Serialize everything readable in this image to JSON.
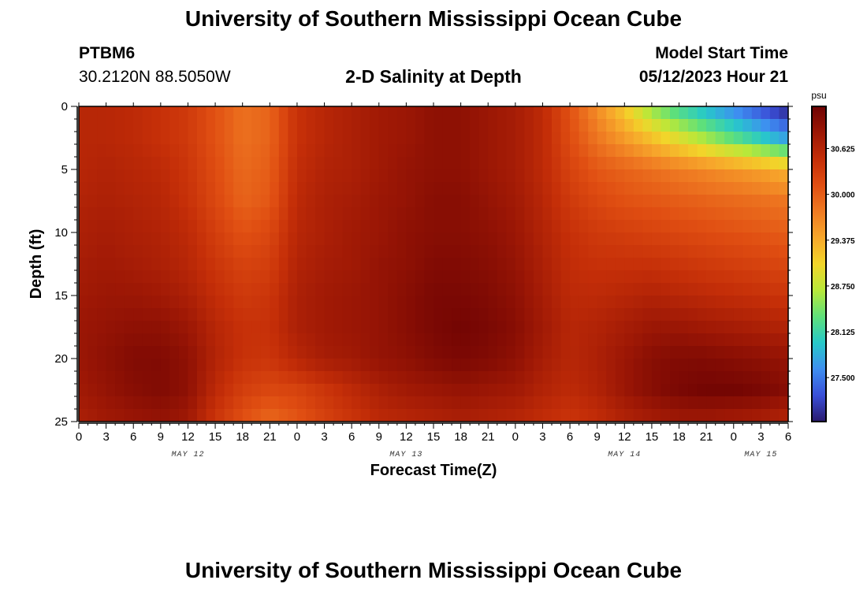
{
  "header": {
    "title": "University of Southern Mississippi Ocean Cube",
    "station_id": "PTBM6",
    "station_coords": "30.2120N  88.5050W",
    "plot_title": "2-D Salinity at Depth",
    "model_start_label": "Model Start Time",
    "model_start_value": "05/12/2023 Hour 21"
  },
  "footer": {
    "title": "University of Southern Mississippi Ocean Cube"
  },
  "chart_data": {
    "type": "heatmap",
    "title": "2-D Salinity at Depth",
    "xlabel": "Forecast Time(Z)",
    "ylabel": "Depth (ft)",
    "x_tick_labels": [
      "0",
      "3",
      "6",
      "9",
      "12",
      "15",
      "18",
      "21",
      "0",
      "3",
      "6",
      "9",
      "12",
      "15",
      "18",
      "21",
      "0",
      "3",
      "6",
      "9",
      "12",
      "15",
      "18",
      "21",
      "0",
      "3",
      "6"
    ],
    "x_hours": [
      0,
      3,
      6,
      9,
      12,
      15,
      18,
      21,
      24,
      27,
      30,
      33,
      36,
      39,
      42,
      45,
      48,
      51,
      54,
      57,
      60,
      63,
      66,
      69,
      72,
      75,
      78
    ],
    "xlim": [
      0,
      78
    ],
    "date_labels": [
      {
        "text": "MAY 12",
        "hour": 12
      },
      {
        "text": "MAY 13",
        "hour": 36
      },
      {
        "text": "MAY 14",
        "hour": 60
      },
      {
        "text": "MAY 15",
        "hour": 75
      }
    ],
    "y_ticks": [
      0,
      5,
      10,
      15,
      20,
      25
    ],
    "ylim": [
      0,
      25
    ],
    "y_inverted": true,
    "colorbar": {
      "unit": "psu",
      "min": 26.9,
      "max": 31.2,
      "ticks": [
        "30.625",
        "30.000",
        "29.375",
        "28.750",
        "28.125",
        "27.500"
      ],
      "tick_values": [
        30.625,
        30.0,
        29.375,
        28.75,
        28.125,
        27.5
      ],
      "colormap": [
        "#2a1a6e",
        "#3a4fd8",
        "#3e8ff0",
        "#27c9c9",
        "#5fe07a",
        "#b8e83a",
        "#f2d52a",
        "#f7a72b",
        "#ef7a22",
        "#e04e12",
        "#c42e08",
        "#9c1705",
        "#6e0303"
      ]
    },
    "depths_ft": [
      0,
      2.5,
      5,
      7.5,
      10,
      12.5,
      15,
      17.5,
      20,
      22.5,
      25
    ],
    "hours": [
      0,
      3,
      6,
      9,
      12,
      15,
      18,
      21,
      24,
      27,
      30,
      33,
      36,
      39,
      42,
      45,
      48,
      51,
      54,
      57,
      60,
      63,
      66,
      69,
      72,
      75,
      78
    ],
    "salinity_psu": [
      [
        30.6,
        30.6,
        30.55,
        30.45,
        30.35,
        30.1,
        29.85,
        29.95,
        30.45,
        30.6,
        30.7,
        30.8,
        30.85,
        30.95,
        30.95,
        30.85,
        30.75,
        30.55,
        30.1,
        29.6,
        29.1,
        28.5,
        28.1,
        27.8,
        27.5,
        27.2,
        26.9
      ],
      [
        30.6,
        30.6,
        30.55,
        30.45,
        30.35,
        30.1,
        29.85,
        29.95,
        30.45,
        30.6,
        30.7,
        30.8,
        30.85,
        30.95,
        30.95,
        30.85,
        30.75,
        30.55,
        30.15,
        29.8,
        29.5,
        29.2,
        28.9,
        28.6,
        28.3,
        28.0,
        27.7
      ],
      [
        30.6,
        30.65,
        30.6,
        30.55,
        30.4,
        30.15,
        29.9,
        30.0,
        30.5,
        30.65,
        30.7,
        30.8,
        30.9,
        30.95,
        30.95,
        30.85,
        30.75,
        30.55,
        30.25,
        30.05,
        29.95,
        29.85,
        29.75,
        29.65,
        29.55,
        29.45,
        29.3
      ],
      [
        30.65,
        30.7,
        30.65,
        30.6,
        30.45,
        30.2,
        29.95,
        30.05,
        30.55,
        30.7,
        30.75,
        30.85,
        30.9,
        31.0,
        31.0,
        30.9,
        30.8,
        30.6,
        30.35,
        30.2,
        30.1,
        30.05,
        30.0,
        29.95,
        29.9,
        29.85,
        29.8
      ],
      [
        30.7,
        30.75,
        30.7,
        30.65,
        30.55,
        30.3,
        30.1,
        30.2,
        30.6,
        30.7,
        30.8,
        30.85,
        30.95,
        31.0,
        31.0,
        30.95,
        30.85,
        30.65,
        30.45,
        30.35,
        30.3,
        30.25,
        30.2,
        30.15,
        30.1,
        30.05,
        30.0
      ],
      [
        30.75,
        30.8,
        30.75,
        30.7,
        30.6,
        30.4,
        30.25,
        30.3,
        30.65,
        30.75,
        30.8,
        30.9,
        30.95,
        31.05,
        31.05,
        31.0,
        30.9,
        30.7,
        30.5,
        30.45,
        30.45,
        30.45,
        30.4,
        30.35,
        30.3,
        30.25,
        30.2
      ],
      [
        30.8,
        30.85,
        30.85,
        30.8,
        30.7,
        30.5,
        30.35,
        30.4,
        30.7,
        30.8,
        30.85,
        30.9,
        31.0,
        31.1,
        31.1,
        31.05,
        30.95,
        30.75,
        30.55,
        30.55,
        30.6,
        30.65,
        30.6,
        30.55,
        30.5,
        30.45,
        30.4
      ],
      [
        30.85,
        30.9,
        30.95,
        30.95,
        30.85,
        30.6,
        30.45,
        30.45,
        30.7,
        30.8,
        30.85,
        30.9,
        31.0,
        31.1,
        31.15,
        31.1,
        31.0,
        30.8,
        30.6,
        30.65,
        30.75,
        30.85,
        30.85,
        30.8,
        30.75,
        30.7,
        30.65
      ],
      [
        30.85,
        30.95,
        31.05,
        31.05,
        30.95,
        30.65,
        30.45,
        30.4,
        30.6,
        30.75,
        30.8,
        30.9,
        30.95,
        31.05,
        31.1,
        31.05,
        30.95,
        30.75,
        30.6,
        30.7,
        30.85,
        31.0,
        31.05,
        31.05,
        31.0,
        30.95,
        30.9
      ],
      [
        30.8,
        30.9,
        31.0,
        31.05,
        30.95,
        30.55,
        30.3,
        30.2,
        30.25,
        30.4,
        30.55,
        30.7,
        30.8,
        30.85,
        30.9,
        30.85,
        30.8,
        30.65,
        30.55,
        30.65,
        30.85,
        31.0,
        31.1,
        31.15,
        31.15,
        31.1,
        31.0
      ],
      [
        30.7,
        30.8,
        30.85,
        30.9,
        30.8,
        30.4,
        30.1,
        29.9,
        30.05,
        30.25,
        30.4,
        30.55,
        30.6,
        30.65,
        30.7,
        30.65,
        30.6,
        30.5,
        30.4,
        30.5,
        30.65,
        30.75,
        30.8,
        30.8,
        30.75,
        30.7,
        30.6
      ]
    ]
  }
}
